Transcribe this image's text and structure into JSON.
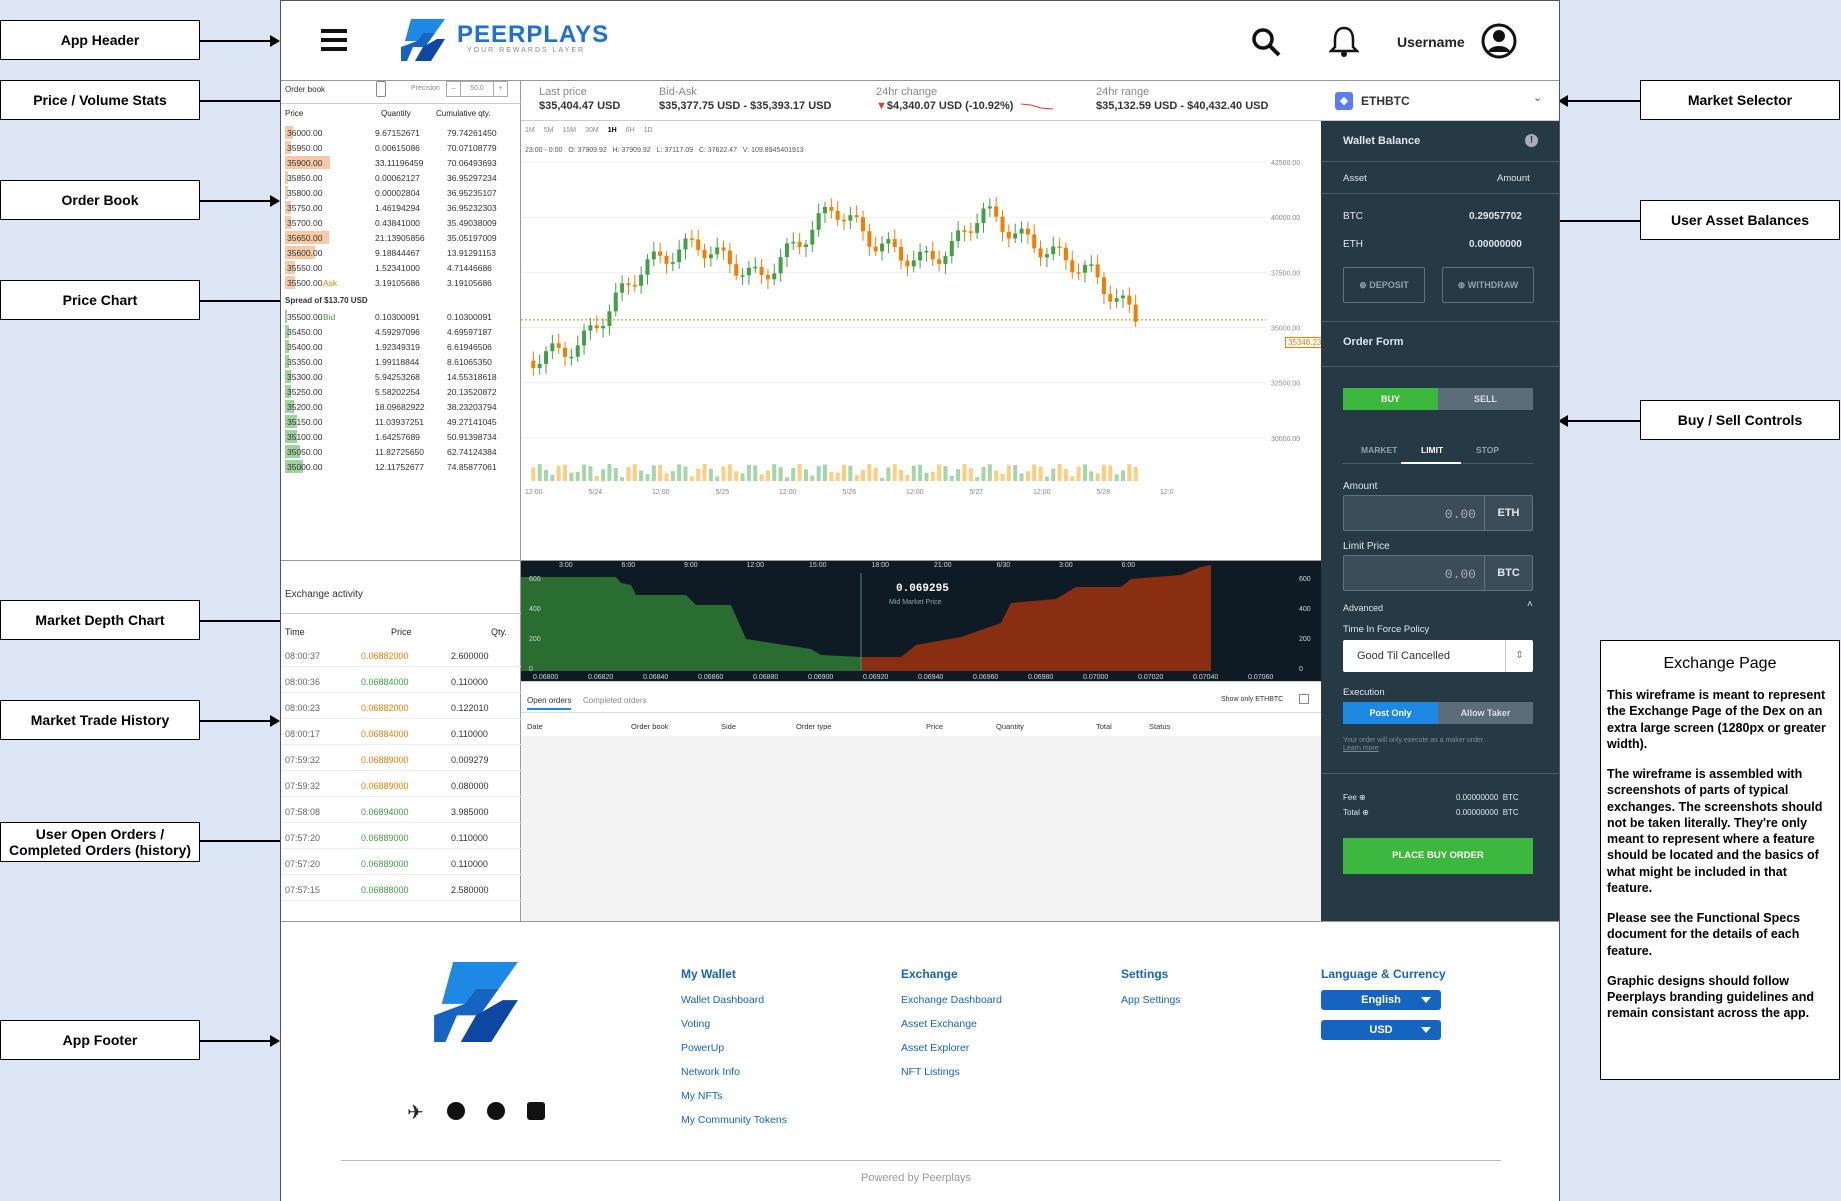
{
  "annotations": {
    "app_header": "App Header",
    "price_volume": "Price / Volume Stats",
    "order_book": "Order Book",
    "price_chart": "Price Chart",
    "market_depth": "Market Depth Chart",
    "trade_history": "Market Trade History",
    "open_orders": "User Open Orders /",
    "open_orders_2": "Completed Orders (history)",
    "app_footer": "App Footer",
    "market_selector": "Market Selector",
    "user_balances": "User Asset Balances",
    "buy_sell": "Buy / Sell Controls"
  },
  "header": {
    "brand": "PEERPLAYS",
    "tagline": "YOUR REWARDS LAYER",
    "username": "Username"
  },
  "stats": {
    "last_price_label": "Last price",
    "last_price": "$35,404.47 USD",
    "bid_ask_label": "Bid-Ask",
    "bid_ask": "$35,377.75 USD - $35,393.17 USD",
    "change_label": "24hr change",
    "change": "$4,340.07 USD (-10.92%)",
    "range_label": "24hr range",
    "range": "$35,132.59 USD - $40,432.40 USD"
  },
  "order_book": {
    "title": "Order book",
    "precision_label": "Precision",
    "precision_value": "50.0",
    "headers": [
      "Price",
      "Quantity",
      "Cumulative qty."
    ],
    "asks": [
      [
        "36000.00",
        "9.67152671",
        "79.74261450"
      ],
      [
        "35950.00",
        "0.00615086",
        "70.07108779"
      ],
      [
        "35900.00",
        "33.11196459",
        "70.06493693"
      ],
      [
        "35850.00",
        "0.00062127",
        "36.95297234"
      ],
      [
        "35800.00",
        "0.00002804",
        "36.95235107"
      ],
      [
        "35750.00",
        "1.46194294",
        "36.95232303"
      ],
      [
        "35700.00",
        "0.43841000",
        "35.49038009"
      ],
      [
        "35650.00",
        "21.13905856",
        "35.05197009"
      ],
      [
        "35600.00",
        "9.18844467",
        "13.91291153"
      ],
      [
        "35550.00",
        "1.52341000",
        "4.71446686"
      ],
      [
        "35500.00",
        "3.19105686",
        "3.19105686"
      ]
    ],
    "ask_label": "Ask",
    "bid_label": "Bid",
    "spread": "Spread of $13.70 USD",
    "bids": [
      [
        "35500.00",
        "0.10300091",
        "0.10300091"
      ],
      [
        "35450.00",
        "4.59297096",
        "4.69597187"
      ],
      [
        "35400.00",
        "1.92349319",
        "6.61946506"
      ],
      [
        "35350.00",
        "1.99118844",
        "8.61065350"
      ],
      [
        "35300.00",
        "5.94253268",
        "14.55318618"
      ],
      [
        "35250.00",
        "5.58202254",
        "20.13520872"
      ],
      [
        "35200.00",
        "18.09682922",
        "38.23203794"
      ],
      [
        "35150.00",
        "11.03937251",
        "49.27141045"
      ],
      [
        "35100.00",
        "1.64257689",
        "50.91398734"
      ],
      [
        "35050.00",
        "11.82725650",
        "62.74124384"
      ],
      [
        "35000.00",
        "12.11752677",
        "74.85877061"
      ]
    ]
  },
  "chart": {
    "intervals": [
      "1M",
      "5M",
      "15M",
      "30M",
      "1H",
      "6H",
      "1D"
    ],
    "ohlc": "23:00 - 0:00   O: 37909.92   H: 37909.92   L: 37117.09   C: 37622.47   V: 109.8945401913",
    "yticks": [
      "42500.00",
      "40000.00",
      "37500.00",
      "35000.00",
      "32500.00",
      "30000.00"
    ],
    "xticks": [
      "12:00",
      "5/24",
      "12:00",
      "5/25",
      "12:00",
      "5/26",
      "12:00",
      "5/27",
      "12:00",
      "5/28",
      "12:0"
    ],
    "last_tag": "35348.23"
  },
  "depth": {
    "mid": "0.069295",
    "mid_label": "Mid Market Price",
    "times": [
      "3:00",
      "6:00",
      "9:00",
      "12:00",
      "15:00",
      "18:00",
      "21:00",
      "6/30",
      "3:00",
      "6:00"
    ],
    "xticks": [
      "0.06800",
      "0.06820",
      "0.06840",
      "0.06860",
      "0.06880",
      "0.06900",
      "0.06920",
      "0.06940",
      "0.06960",
      "0.06980",
      "0.07000",
      "0.07020",
      "0.07040",
      "0.07060"
    ],
    "left_y": [
      "600",
      "400",
      "200",
      "0"
    ],
    "right_y": [
      "600",
      "400",
      "200",
      "0"
    ]
  },
  "orders": {
    "tab_open": "Open orders",
    "tab_completed": "Completed orders",
    "show_only": "Show only ETHBTC",
    "cols": [
      "Date",
      "Order book",
      "Side",
      "Order type",
      "Price",
      "Quantity",
      "Total",
      "Status"
    ]
  },
  "activity": {
    "title": "Exchange activity",
    "cols": [
      "Time",
      "Price",
      "Qty."
    ],
    "rows": [
      [
        "08:00:37",
        "0.06882000",
        "2.600000",
        "o"
      ],
      [
        "08:00:36",
        "0.06884000",
        "0.110000",
        "g"
      ],
      [
        "08:00:23",
        "0.06882000",
        "0.122010",
        "o"
      ],
      [
        "08:00:17",
        "0.06884000",
        "0.110000",
        "o"
      ],
      [
        "07:59:32",
        "0.06889000",
        "0.009279",
        "o"
      ],
      [
        "07:59:32",
        "0.06889000",
        "0.080000",
        "o"
      ],
      [
        "07:58:08",
        "0.06894000",
        "3.985000",
        "g"
      ],
      [
        "07:57:20",
        "0.06889000",
        "0.110000",
        "g"
      ],
      [
        "07:57:20",
        "0.06889000",
        "0.110000",
        "g"
      ],
      [
        "07:57:15",
        "0.06888000",
        "2.580000",
        "g"
      ]
    ]
  },
  "right": {
    "market": "ETHBTC",
    "wallet_title": "Wallet Balance",
    "asset_col": "Asset",
    "amount_col": "Amount",
    "balances": [
      [
        "BTC",
        "0.29057702"
      ],
      [
        "ETH",
        "0.00000000"
      ]
    ],
    "deposit": "DEPOSIT",
    "withdraw": "WITHDRAW",
    "order_form": "Order Form",
    "buy": "BUY",
    "sell": "SELL",
    "types": [
      "MARKET",
      "LIMIT",
      "STOP"
    ],
    "amount_label": "Amount",
    "amount_val": "0.00",
    "amount_unit": "ETH",
    "limit_label": "Limit Price",
    "limit_val": "0.00",
    "limit_unit": "BTC",
    "advanced": "Advanced",
    "tif_label": "Time In Force Policy",
    "tif_val": "Good Til Cancelled",
    "exec_label": "Execution",
    "post_only": "Post Only",
    "allow_taker": "Allow Taker",
    "exec_note": "Your order will only execute as a maker order.",
    "learn_more": "Learn more",
    "fee_label": "Fee",
    "fee": "0.00000000  BTC",
    "total_label": "Total",
    "total": "0.00000000  BTC",
    "place": "PLACE BUY ORDER"
  },
  "footer": {
    "col1": {
      "title": "My Wallet",
      "links": [
        "Wallet Dashboard",
        "Voting",
        "PowerUp",
        "Network Info",
        "My NFTs",
        "My Community Tokens"
      ]
    },
    "col2": {
      "title": "Exchange",
      "links": [
        "Exchange Dashboard",
        "Asset Exchange",
        "Asset Explorer",
        "NFT Listings"
      ]
    },
    "col3": {
      "title": "Settings",
      "links": [
        "App Settings"
      ]
    },
    "col4": {
      "title": "Language & Currency",
      "language": "English",
      "currency": "USD"
    },
    "powered": "Powered by Peerplays"
  },
  "notes": {
    "title": "Exchange Page",
    "p1": "This wireframe is meant to represent the Exchange Page of the Dex on an extra large screen (1280px or greater width).",
    "p2": "The wireframe is assembled with screenshots of parts of typical exchanges. The screenshots should not be taken literally. They're only meant to represent where a feature should be located and the basics of what might be included in that feature.",
    "p3": "Please see the Functional Specs document for the details of each feature.",
    "p4": "Graphic designs should follow Peerplays branding guidelines and remain consistant across the app."
  }
}
